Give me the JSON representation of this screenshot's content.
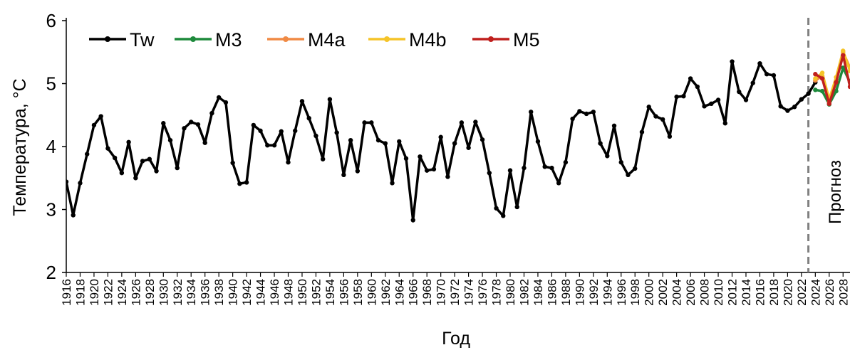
{
  "chart_data": {
    "type": "line",
    "xlabel": "Год",
    "ylabel": "Температура, °C",
    "forecast_label": "Прогноз",
    "ylim": [
      2,
      6
    ],
    "yticks": [
      2,
      3,
      4,
      5,
      6
    ],
    "xlim": [
      1916,
      2029
    ],
    "xtick_start": 1916,
    "xtick_end": 2028,
    "xtick_step": 2,
    "forecast_start": 2023,
    "legend_position": "top-left",
    "series": [
      {
        "name": "Tw",
        "color": "#000000",
        "start_year": 1916,
        "values": [
          3.44,
          2.91,
          3.42,
          3.88,
          4.34,
          4.48,
          3.97,
          3.82,
          3.58,
          4.07,
          3.5,
          3.77,
          3.8,
          3.61,
          4.37,
          4.1,
          3.66,
          4.29,
          4.39,
          4.35,
          4.06,
          4.53,
          4.78,
          4.7,
          3.74,
          3.41,
          3.43,
          4.34,
          4.25,
          4.02,
          4.02,
          4.24,
          3.75,
          4.25,
          4.72,
          4.45,
          4.17,
          3.8,
          4.75,
          4.22,
          3.55,
          4.1,
          3.61,
          4.38,
          4.38,
          4.1,
          4.05,
          3.42,
          4.08,
          3.81,
          2.83,
          3.84,
          3.62,
          3.64,
          4.15,
          3.52,
          4.05,
          4.38,
          3.98,
          4.39,
          4.11,
          3.58,
          3.02,
          2.9,
          3.62,
          3.04,
          3.66,
          4.55,
          4.08,
          3.68,
          3.66,
          3.42,
          3.75,
          4.44,
          4.56,
          4.52,
          4.55,
          4.05,
          3.85,
          4.33,
          3.75,
          3.55,
          3.65,
          4.23,
          4.63,
          4.48,
          4.43,
          4.16,
          4.79,
          4.8,
          5.08,
          4.95,
          4.64,
          4.68,
          4.74,
          4.37,
          5.35,
          4.87,
          4.74,
          5.01,
          5.32,
          5.15,
          5.13,
          4.64,
          4.57,
          4.63,
          4.75,
          4.84,
          5.02
        ]
      },
      {
        "name": "M3",
        "color": "#1e8a3c",
        "start_year": 2024,
        "values": [
          4.9,
          4.88,
          4.67,
          4.88,
          5.25,
          5.02
        ]
      },
      {
        "name": "M4a",
        "color": "#f08a45",
        "start_year": 2024,
        "values": [
          5.05,
          5.12,
          4.7,
          5.05,
          5.5,
          5.25
        ]
      },
      {
        "name": "M4b",
        "color": "#f5c428",
        "start_year": 2024,
        "values": [
          5.08,
          5.17,
          4.75,
          5.1,
          5.52,
          5.2
        ]
      },
      {
        "name": "M5",
        "color": "#c0201e",
        "start_year": 2024,
        "values": [
          5.15,
          5.08,
          4.68,
          5.02,
          5.45,
          4.95
        ]
      }
    ]
  }
}
